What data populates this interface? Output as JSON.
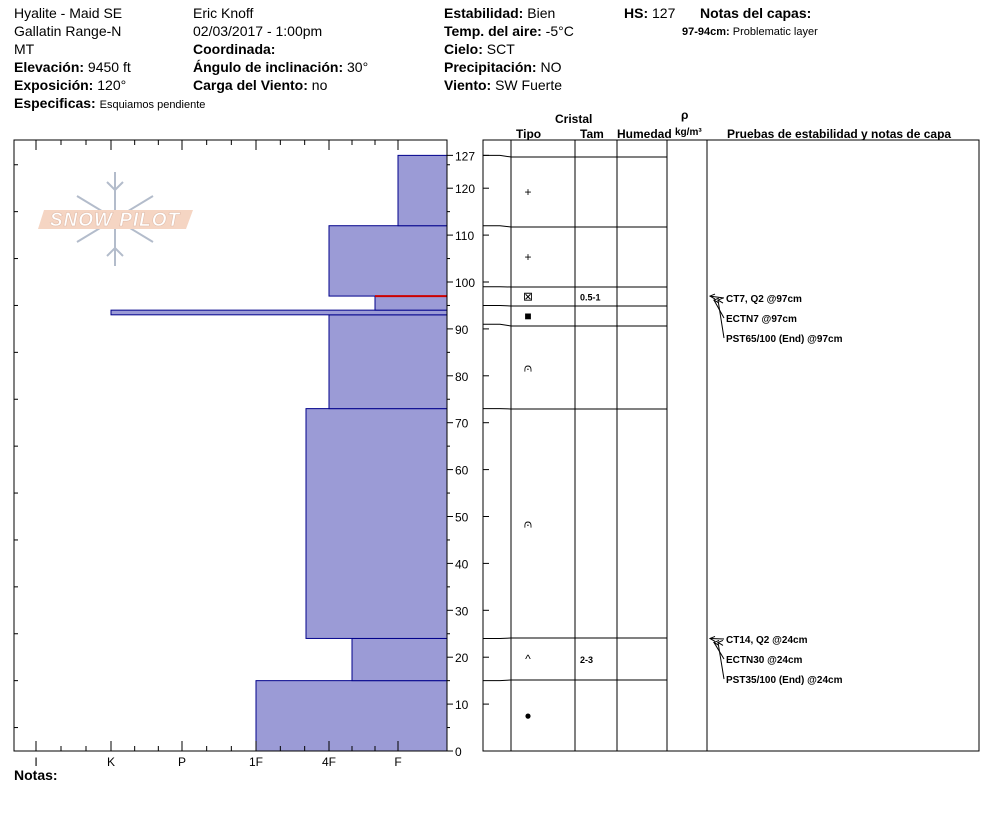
{
  "header": {
    "location": "Hyalite - Maid SE",
    "range": "Gallatin Range-N",
    "state": "MT",
    "elevation_label": "Elevación:",
    "elevation_value": "9450 ft",
    "aspect_label": "Exposición:",
    "aspect_value": "120°",
    "specifics_label": "Especificas:",
    "specifics_value": "Esquiamos pendiente",
    "observer": "Eric Knoff",
    "datetime": "02/03/2017 - 1:00pm",
    "coord_label": "Coordinada:",
    "slope_label": "Ángulo de inclinación:",
    "slope_value": "30°",
    "wind_load_label": "Carga del Viento:",
    "wind_load_value": "no",
    "stability_label": "Estabilidad:",
    "stability_value": "Bien",
    "air_temp_label": "Temp. del aire:",
    "air_temp_value": "-5°C",
    "sky_label": "Cielo:",
    "sky_value": "SCT",
    "precip_label": "Precipitación:",
    "precip_value": "NO",
    "wind_label": "Viento:",
    "wind_value": "SW Fuerte",
    "hs_label": "HS:",
    "hs_value": "127",
    "layer_notes_label": "Notas del capas:",
    "layer_note_range": "97-94cm:",
    "layer_note_text": "Problematic layer"
  },
  "columns": {
    "crystal": "Cristal",
    "type": "Tipo",
    "size": "Tam",
    "moisture": "Humedad",
    "density_symbol": "ρ",
    "density_unit": "kg/m³",
    "tests": "Pruebas de estabilidad y notas de capa"
  },
  "logo": {
    "text": "SNOW PILOT"
  },
  "footer": {
    "notes_label": "Notas:"
  },
  "colors": {
    "layer_fill": "#9b9bd6",
    "layer_stroke": "#00008b",
    "problem_line": "#cc0000"
  },
  "chart_data": {
    "type": "bar",
    "title": "",
    "y_axis": {
      "label": "",
      "min": 0,
      "max": 127,
      "ticks": [
        0,
        10,
        20,
        30,
        40,
        50,
        60,
        70,
        80,
        90,
        100,
        110,
        120,
        127
      ]
    },
    "x_axis": {
      "categories": [
        "I",
        "K",
        "P",
        "1F",
        "4F",
        "F"
      ],
      "direction": "reverse"
    },
    "hardness_profile": [
      {
        "bottom": 0,
        "top": 15,
        "hardness": "1F"
      },
      {
        "bottom": 15,
        "top": 24,
        "hardness": "4F-"
      },
      {
        "bottom": 24,
        "top": 73,
        "hardness": "4F+"
      },
      {
        "bottom": 73,
        "top": 93,
        "hardness": "4F"
      },
      {
        "bottom": 93,
        "top": 94,
        "hardness": "K"
      },
      {
        "bottom": 94,
        "top": 97,
        "hardness": "F+"
      },
      {
        "bottom": 97,
        "top": 112,
        "hardness": "4F"
      },
      {
        "bottom": 112,
        "top": 127,
        "hardness": "F"
      }
    ],
    "problem_layer_cm": 97,
    "layers": [
      {
        "bottom": 112,
        "top": 127,
        "grain": "+",
        "size": ""
      },
      {
        "bottom": 99,
        "top": 112,
        "grain": "+",
        "size": ""
      },
      {
        "bottom": 95,
        "top": 99,
        "grain": "⊠",
        "size": "0.5-1"
      },
      {
        "bottom": 91,
        "top": 95,
        "grain": "■",
        "size": ""
      },
      {
        "bottom": 73,
        "top": 91,
        "grain": "⩀",
        "size": ""
      },
      {
        "bottom": 24,
        "top": 73,
        "grain": "⩀",
        "size": ""
      },
      {
        "bottom": 15,
        "top": 24,
        "grain": "^",
        "size": "2-3"
      },
      {
        "bottom": 0,
        "top": 15,
        "grain": "●",
        "size": ""
      }
    ],
    "tests": [
      {
        "depth": 97,
        "text": "CT7, Q2 @97cm"
      },
      {
        "depth": 97,
        "text": "ECTN7 @97cm"
      },
      {
        "depth": 97,
        "text": "PST65/100 (End) @97cm"
      },
      {
        "depth": 24,
        "text": "CT14, Q2 @24cm"
      },
      {
        "depth": 24,
        "text": "ECTN30 @24cm"
      },
      {
        "depth": 24,
        "text": "PST35/100 (End) @24cm"
      }
    ]
  }
}
